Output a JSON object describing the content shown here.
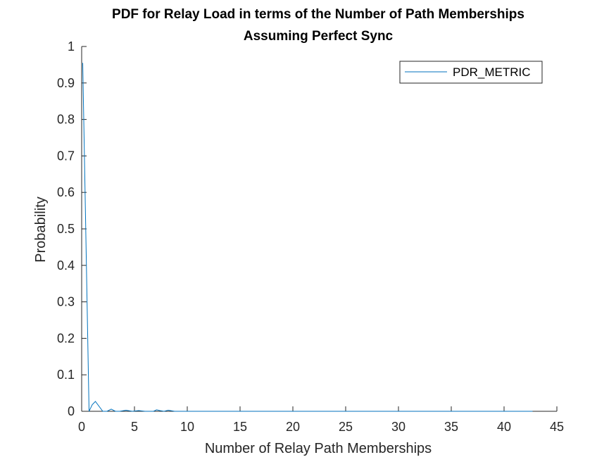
{
  "chart_data": {
    "type": "line",
    "title_lines": [
      "PDF for Relay Load in terms of the Number of Path Memberships",
      "Assuming Perfect Sync"
    ],
    "xlabel": "Number of Relay Path Memberships",
    "ylabel": "Probability",
    "xlim": [
      0,
      45
    ],
    "ylim": [
      0,
      1
    ],
    "xticks": [
      "0",
      "5",
      "10",
      "15",
      "20",
      "25",
      "30",
      "35",
      "40",
      "45"
    ],
    "yticks": [
      "0",
      "0.1",
      "0.2",
      "0.3",
      "0.4",
      "0.5",
      "0.6",
      "0.7",
      "0.8",
      "0.9",
      "1"
    ],
    "grid": false,
    "legend_position": "top-right",
    "series": [
      {
        "name": "PDR_METRIC",
        "color": "#0072bd",
        "x": [
          0.1,
          0.7,
          1.0,
          1.3,
          2.0,
          2.4,
          2.8,
          3.2,
          3.6,
          4.2,
          4.8,
          5.4,
          6.0,
          6.8,
          7.1,
          7.4,
          7.8,
          8.2,
          8.8,
          10,
          15,
          20,
          25,
          30,
          35,
          40,
          42.7
        ],
        "y": [
          0.955,
          0.0,
          0.018,
          0.027,
          0.0,
          0.0,
          0.006,
          0.0,
          0.0,
          0.003,
          0.0,
          0.002,
          0.0,
          0.0,
          0.004,
          0.002,
          0.0,
          0.003,
          0.0,
          0.0,
          0.0,
          0.0,
          0.0,
          0.0,
          0.0,
          0.0,
          0.0
        ]
      }
    ]
  }
}
